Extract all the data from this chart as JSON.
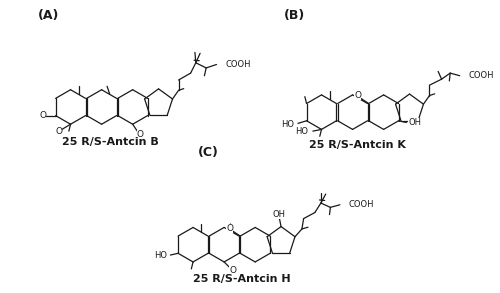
{
  "panel_labels": [
    "(A)",
    "(B)",
    "(C)"
  ],
  "compound_labels": [
    "25 R/S-Antcin B",
    "25 R/S-Antcin K",
    "25 R/S-Antcin H"
  ],
  "background_color": "#ffffff",
  "line_color": "#1a1a1a",
  "label_fontsize": 8,
  "panel_label_fontsize": 9,
  "fig_width": 5.0,
  "fig_height": 2.93,
  "dpi": 100
}
